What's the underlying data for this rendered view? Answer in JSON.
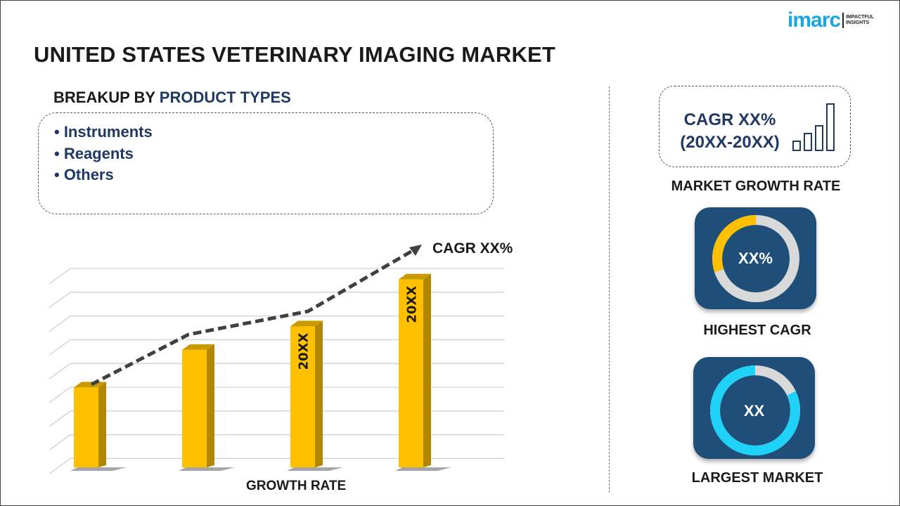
{
  "title": "UNITED STATES VETERINARY IMAGING MARKET",
  "logo": {
    "word": "imarc",
    "tagline_1": "IMPACTFUL",
    "tagline_2": "INSIGHTS",
    "color": "#1aa6e0"
  },
  "breakup": {
    "prefix": "BREAKUP BY ",
    "highlight": "PRODUCT TYPES"
  },
  "segments": [
    "• Instruments",
    "• Reagents",
    "• Others"
  ],
  "chart": {
    "annotation": "CAGR XX%",
    "xlabel": "GROWTH RATE",
    "bar_labels": [
      "",
      "",
      "20XX",
      "20XX"
    ],
    "relative_heights": [
      0.34,
      0.5,
      0.6,
      0.8
    ],
    "bar_color": "#ffc000",
    "bar_side_color": "#b38600"
  },
  "cagr": {
    "line1": "CAGR XX%",
    "line2": "(20XX-20XX)",
    "caption": "MARKET GROWTH RATE",
    "icon": "bar-chart-icon"
  },
  "highest": {
    "value": "XX%",
    "caption": "HIGHEST CAGR",
    "fraction": 0.3,
    "color": "#ffc000"
  },
  "largest": {
    "value": "XX",
    "caption": "LARGEST MARKET",
    "fraction": 0.82,
    "color": "#1ed3f7"
  },
  "colors": {
    "navy": "#1f3864",
    "card": "#1f4e79",
    "ring_track": "#d9d9d9"
  }
}
